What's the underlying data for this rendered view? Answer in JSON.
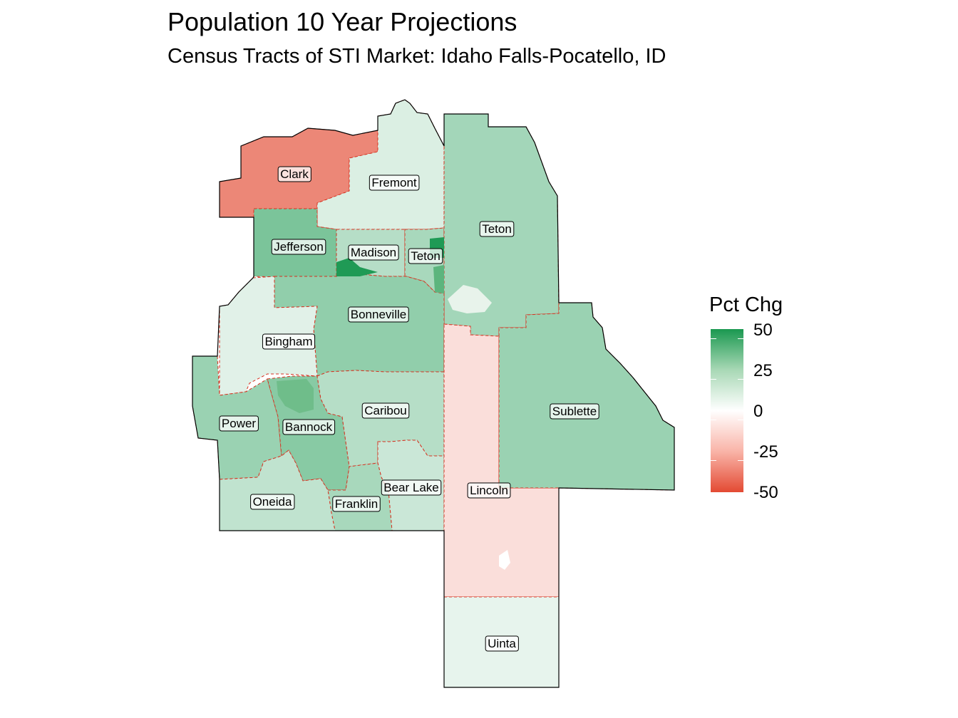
{
  "title": "Population 10 Year Projections",
  "subtitle": "Census Tracts of STI Market: Idaho Falls-Pocatello, ID",
  "legend": {
    "title": "Pct Chg",
    "ticks": [
      "50",
      "25",
      "0",
      "-25",
      "-50"
    ],
    "colors": {
      "high": "#1a9850",
      "mid": "#ffffff",
      "low": "#e34a33"
    }
  },
  "counties": [
    {
      "name": "Clark",
      "pct_chg": -30
    },
    {
      "name": "Fremont",
      "pct_chg": 5
    },
    {
      "name": "Jefferson",
      "pct_chg": 25
    },
    {
      "name": "Madison",
      "pct_chg": 12
    },
    {
      "name": "Teton",
      "pct_chg": 15
    },
    {
      "name": "Teton",
      "pct_chg": 16
    },
    {
      "name": "Bonneville",
      "pct_chg": 20
    },
    {
      "name": "Bingham",
      "pct_chg": 4
    },
    {
      "name": "Power",
      "pct_chg": 18
    },
    {
      "name": "Bannock",
      "pct_chg": 22
    },
    {
      "name": "Caribou",
      "pct_chg": 12
    },
    {
      "name": "Bear Lake",
      "pct_chg": 8
    },
    {
      "name": "Franklin",
      "pct_chg": 15
    },
    {
      "name": "Oneida",
      "pct_chg": 10
    },
    {
      "name": "Lincoln",
      "pct_chg": -6
    },
    {
      "name": "Sublette",
      "pct_chg": 18
    },
    {
      "name": "Uinta",
      "pct_chg": 3
    }
  ]
}
